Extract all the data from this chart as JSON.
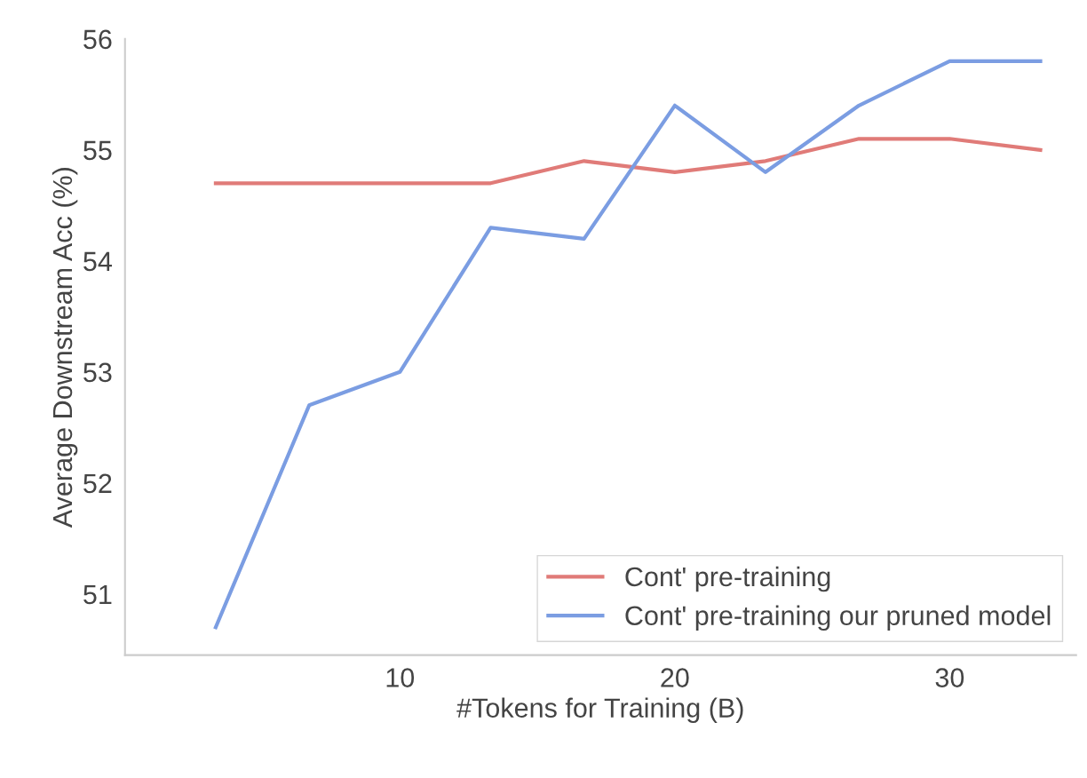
{
  "chart_data": {
    "type": "line",
    "xlabel": "#Tokens for Training (B)",
    "ylabel": "Average Downstream Acc (%)",
    "x": [
      3.3,
      6.7,
      10,
      13.3,
      16.7,
      20,
      23.3,
      26.7,
      30,
      33.3
    ],
    "series": [
      {
        "name": "Cont' pre-training",
        "color": "#e07b78",
        "values": [
          54.7,
          54.7,
          54.7,
          54.7,
          54.9,
          54.8,
          54.9,
          55.1,
          55.1,
          55.0
        ]
      },
      {
        "name": "Cont' pre-training our pruned model",
        "color": "#7b9de2",
        "values": [
          50.7,
          52.7,
          53.0,
          54.3,
          54.2,
          55.4,
          54.8,
          55.4,
          55.8,
          55.8
        ]
      }
    ],
    "xlim": [
      0,
      34.6
    ],
    "ylim": [
      50.45,
      56.0
    ],
    "xticks": [
      10,
      20,
      30
    ],
    "yticks": [
      51,
      52,
      53,
      54,
      55,
      56
    ],
    "grid": false,
    "legend": "bottom right",
    "marker": "none",
    "line_style": "solid"
  }
}
